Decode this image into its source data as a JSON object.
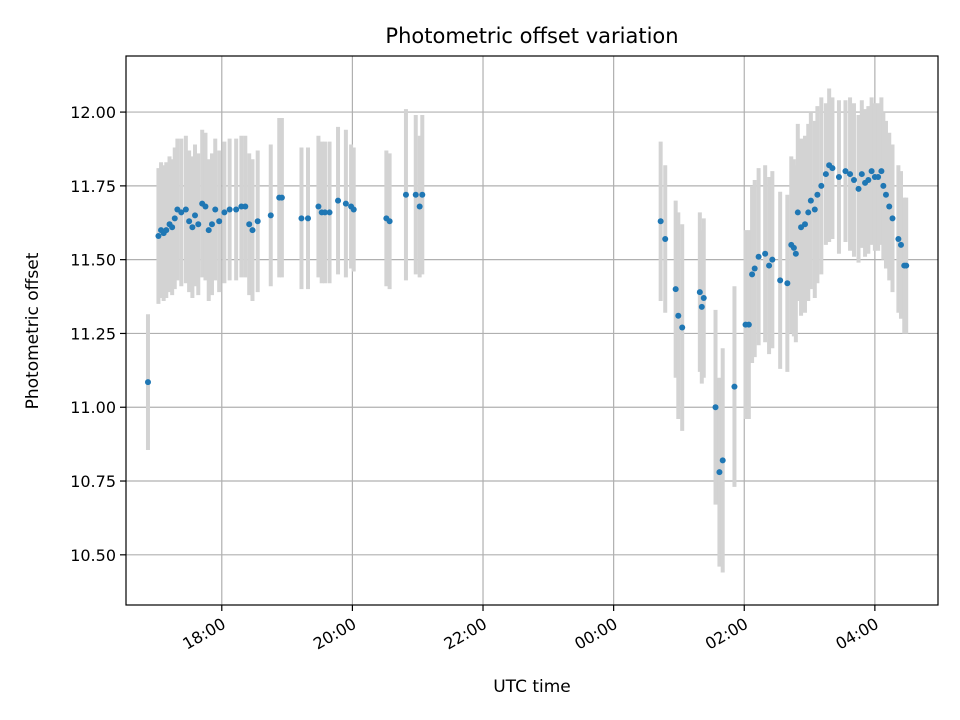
{
  "chart_data": {
    "type": "scatter",
    "title": "Photometric offset variation",
    "xlabel": "UTC time",
    "ylabel": "Photometric offset",
    "x_unit": "hours since 00:00 UTC (negative = previous day)",
    "xlim": [
      "16:32",
      "04:58"
    ],
    "ylim": [
      10.33,
      12.19
    ],
    "yticks": [
      "10.50",
      "10.75",
      "11.00",
      "11.25",
      "11.50",
      "11.75",
      "12.00"
    ],
    "xticks": [
      "18:00",
      "20:00",
      "22:00",
      "00:00",
      "02:00",
      "04:00"
    ],
    "grid": true,
    "legend": null,
    "colors": {
      "points": "#1f77b4",
      "errorbars": "#d3d3d3",
      "grid": "#b0b0b0"
    },
    "series": [
      {
        "values_format": "[time_hours, offset, error]",
        "points": [
          [
            -7.13,
            11.085,
            0.23
          ],
          [
            -6.97,
            11.58,
            0.23
          ],
          [
            -6.93,
            11.6,
            0.23
          ],
          [
            -6.89,
            11.59,
            0.23
          ],
          [
            -6.85,
            11.6,
            0.23
          ],
          [
            -6.8,
            11.62,
            0.23
          ],
          [
            -6.76,
            11.61,
            0.23
          ],
          [
            -6.72,
            11.64,
            0.24
          ],
          [
            -6.68,
            11.67,
            0.24
          ],
          [
            -6.62,
            11.66,
            0.25
          ],
          [
            -6.55,
            11.67,
            0.25
          ],
          [
            -6.5,
            11.63,
            0.24
          ],
          [
            -6.45,
            11.61,
            0.24
          ],
          [
            -6.41,
            11.65,
            0.24
          ],
          [
            -6.36,
            11.62,
            0.24
          ],
          [
            -6.3,
            11.69,
            0.25
          ],
          [
            -6.25,
            11.68,
            0.25
          ],
          [
            -6.2,
            11.6,
            0.24
          ],
          [
            -6.15,
            11.62,
            0.24
          ],
          [
            -6.1,
            11.67,
            0.24
          ],
          [
            -6.04,
            11.63,
            0.24
          ],
          [
            -5.96,
            11.66,
            0.24
          ],
          [
            -5.88,
            11.67,
            0.24
          ],
          [
            -5.78,
            11.67,
            0.24
          ],
          [
            -5.7,
            11.68,
            0.24
          ],
          [
            -5.64,
            11.68,
            0.24
          ],
          [
            -5.58,
            11.62,
            0.24
          ],
          [
            -5.53,
            11.6,
            0.24
          ],
          [
            -5.45,
            11.63,
            0.24
          ],
          [
            -5.25,
            11.65,
            0.24
          ],
          [
            -5.12,
            11.71,
            0.27
          ],
          [
            -5.08,
            11.71,
            0.27
          ],
          [
            -4.78,
            11.64,
            0.24
          ],
          [
            -4.68,
            11.64,
            0.24
          ],
          [
            -4.52,
            11.68,
            0.24
          ],
          [
            -4.47,
            11.66,
            0.24
          ],
          [
            -4.42,
            11.66,
            0.24
          ],
          [
            -4.35,
            11.66,
            0.24
          ],
          [
            -4.22,
            11.7,
            0.25
          ],
          [
            -4.1,
            11.69,
            0.25
          ],
          [
            -4.02,
            11.68,
            0.21
          ],
          [
            -3.98,
            11.67,
            0.21
          ],
          [
            -3.48,
            11.64,
            0.23
          ],
          [
            -3.43,
            11.63,
            0.23
          ],
          [
            -3.18,
            11.72,
            0.29
          ],
          [
            -3.03,
            11.72,
            0.27
          ],
          [
            -2.97,
            11.68,
            0.24
          ],
          [
            -2.93,
            11.72,
            0.27
          ],
          [
            0.72,
            11.63,
            0.27
          ],
          [
            0.79,
            11.57,
            0.25
          ],
          [
            0.95,
            11.4,
            0.3
          ],
          [
            0.99,
            11.31,
            0.35
          ],
          [
            1.05,
            11.27,
            0.35
          ],
          [
            1.32,
            11.39,
            0.27
          ],
          [
            1.35,
            11.34,
            0.26
          ],
          [
            1.38,
            11.37,
            0.27
          ],
          [
            1.56,
            11.0,
            0.33
          ],
          [
            1.62,
            10.78,
            0.32
          ],
          [
            1.67,
            10.82,
            0.38
          ],
          [
            1.85,
            11.07,
            0.34
          ],
          [
            2.02,
            11.28,
            0.32
          ],
          [
            2.07,
            11.28,
            0.32
          ],
          [
            2.12,
            11.45,
            0.3
          ],
          [
            2.16,
            11.47,
            0.3
          ],
          [
            2.22,
            11.51,
            0.3
          ],
          [
            2.32,
            11.52,
            0.3
          ],
          [
            2.38,
            11.48,
            0.3
          ],
          [
            2.43,
            11.5,
            0.3
          ],
          [
            2.55,
            11.43,
            0.3
          ],
          [
            2.66,
            11.42,
            0.3
          ],
          [
            2.72,
            11.55,
            0.3
          ],
          [
            2.76,
            11.54,
            0.3
          ],
          [
            2.79,
            11.52,
            0.3
          ],
          [
            2.82,
            11.66,
            0.3
          ],
          [
            2.87,
            11.61,
            0.3
          ],
          [
            2.93,
            11.62,
            0.3
          ],
          [
            2.98,
            11.66,
            0.3
          ],
          [
            3.02,
            11.7,
            0.3
          ],
          [
            3.08,
            11.67,
            0.3
          ],
          [
            3.12,
            11.72,
            0.3
          ],
          [
            3.18,
            11.75,
            0.3
          ],
          [
            3.25,
            11.79,
            0.24
          ],
          [
            3.3,
            11.82,
            0.26
          ],
          [
            3.35,
            11.81,
            0.24
          ],
          [
            3.45,
            11.78,
            0.26
          ],
          [
            3.55,
            11.8,
            0.24
          ],
          [
            3.62,
            11.79,
            0.26
          ],
          [
            3.68,
            11.77,
            0.26
          ],
          [
            3.75,
            11.74,
            0.25
          ],
          [
            3.8,
            11.79,
            0.25
          ],
          [
            3.85,
            11.76,
            0.25
          ],
          [
            3.9,
            11.77,
            0.25
          ],
          [
            3.95,
            11.8,
            0.25
          ],
          [
            4.0,
            11.78,
            0.25
          ],
          [
            4.05,
            11.78,
            0.25
          ],
          [
            4.1,
            11.8,
            0.25
          ],
          [
            4.13,
            11.75,
            0.25
          ],
          [
            4.17,
            11.72,
            0.25
          ],
          [
            4.22,
            11.68,
            0.25
          ],
          [
            4.27,
            11.64,
            0.25
          ],
          [
            4.36,
            11.57,
            0.25
          ],
          [
            4.4,
            11.55,
            0.25
          ],
          [
            4.45,
            11.48,
            0.23
          ],
          [
            4.48,
            11.48,
            0.23
          ]
        ]
      }
    ]
  }
}
